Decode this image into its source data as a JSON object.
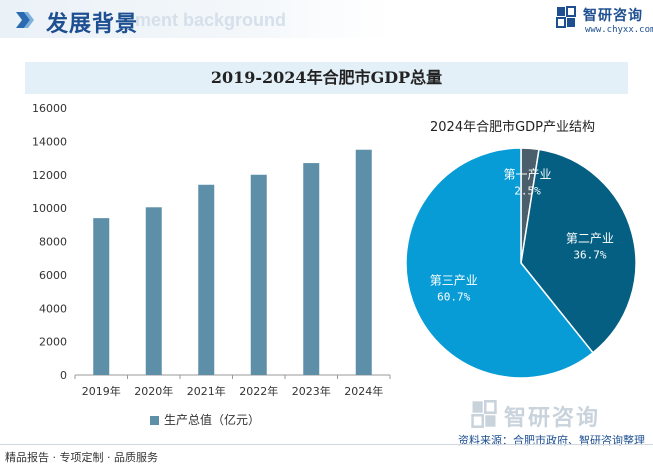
{
  "header": {
    "title": "发展背景",
    "ghost_text": "ment background",
    "logo_name": "智研咨询",
    "logo_url": "www.chyxx.com"
  },
  "watermark": {
    "text": "智研咨询"
  },
  "colors": {
    "bar": "#5d90a8",
    "primary": "#4a5f6b",
    "secondary": "#045f82",
    "tertiary": "#079cd6",
    "brand": "#1d4f91"
  },
  "chart_data": [
    {
      "type": "bar",
      "title": "2019-2024年合肥市GDP总量",
      "categories": [
        "2019年",
        "2020年",
        "2021年",
        "2022年",
        "2023年",
        "2024年"
      ],
      "series": [
        {
          "name": "生产总值（亿元）",
          "values": [
            9400,
            10050,
            11400,
            12000,
            12700,
            13500
          ]
        }
      ],
      "ylim": [
        0,
        16000
      ],
      "yticks": [
        0,
        2000,
        4000,
        6000,
        8000,
        10000,
        12000,
        14000,
        16000
      ],
      "legend": "bottom",
      "grid": false
    },
    {
      "type": "pie",
      "title": "2024年合肥市GDP产业结构",
      "slices": [
        {
          "label": "第一产业",
          "value": 2.5,
          "display": "2.5%"
        },
        {
          "label": "第二产业",
          "value": 36.7,
          "display": "36.7%"
        },
        {
          "label": "第三产业",
          "value": 60.7,
          "display": "60.7%"
        }
      ]
    }
  ],
  "footer": {
    "left": "精品报告 · 专项定制 · 品质服务",
    "source": "资料来源：合肥市政府、智研咨询整理"
  }
}
